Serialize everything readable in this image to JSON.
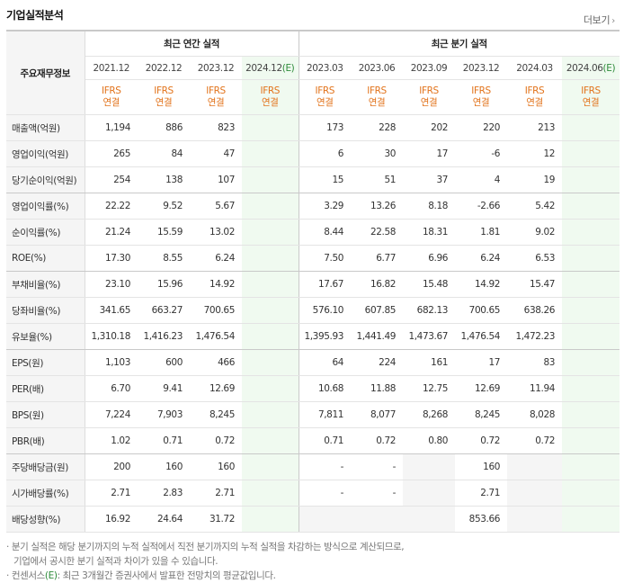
{
  "title": "기업실적분석",
  "more_label": "더보기",
  "header": {
    "row_label": "주요재무정보",
    "annual_group": "최근 연간 실적",
    "quarter_group": "최근 분기 실적",
    "annual_periods": [
      "2021.12",
      "2022.12",
      "2023.12",
      "2024.12"
    ],
    "annual_est_suffix": "(E)",
    "quarter_periods": [
      "2023.03",
      "2023.06",
      "2023.09",
      "2023.12",
      "2024.03",
      "2024.06"
    ],
    "quarter_est_suffix": "(E)",
    "basis_top": "IFRS",
    "basis_bottom": "연결"
  },
  "rows": [
    {
      "label": "매출액(억원)",
      "annual": [
        "1,194",
        "886",
        "823",
        ""
      ],
      "quarter": [
        "173",
        "228",
        "202",
        "220",
        "213",
        ""
      ]
    },
    {
      "label": "영업이익(억원)",
      "annual": [
        "265",
        "84",
        "47",
        ""
      ],
      "quarter": [
        "6",
        "30",
        "17",
        "-6",
        "12",
        ""
      ]
    },
    {
      "label": "당기순이익(억원)",
      "annual": [
        "254",
        "138",
        "107",
        ""
      ],
      "quarter": [
        "15",
        "51",
        "37",
        "4",
        "19",
        ""
      ]
    },
    {
      "label": "영업이익률(%)",
      "annual": [
        "22.22",
        "9.52",
        "5.67",
        ""
      ],
      "quarter": [
        "3.29",
        "13.26",
        "8.18",
        "-2.66",
        "5.42",
        ""
      ]
    },
    {
      "label": "순이익률(%)",
      "annual": [
        "21.24",
        "15.59",
        "13.02",
        ""
      ],
      "quarter": [
        "8.44",
        "22.58",
        "18.31",
        "1.81",
        "9.02",
        ""
      ]
    },
    {
      "label": "ROE(%)",
      "annual": [
        "17.30",
        "8.55",
        "6.24",
        ""
      ],
      "quarter": [
        "7.50",
        "6.77",
        "6.96",
        "6.24",
        "6.53",
        ""
      ]
    },
    {
      "label": "부채비율(%)",
      "annual": [
        "23.10",
        "15.96",
        "14.92",
        ""
      ],
      "quarter": [
        "17.67",
        "16.82",
        "15.48",
        "14.92",
        "15.47",
        ""
      ]
    },
    {
      "label": "당좌비율(%)",
      "annual": [
        "341.65",
        "663.27",
        "700.65",
        ""
      ],
      "quarter": [
        "576.10",
        "607.85",
        "682.13",
        "700.65",
        "638.26",
        ""
      ]
    },
    {
      "label": "유보율(%)",
      "annual": [
        "1,310.18",
        "1,416.23",
        "1,476.54",
        ""
      ],
      "quarter": [
        "1,395.93",
        "1,441.49",
        "1,473.67",
        "1,476.54",
        "1,472.23",
        ""
      ]
    },
    {
      "label": "EPS(원)",
      "annual": [
        "1,103",
        "600",
        "466",
        ""
      ],
      "quarter": [
        "64",
        "224",
        "161",
        "17",
        "83",
        ""
      ]
    },
    {
      "label": "PER(배)",
      "annual": [
        "6.70",
        "9.41",
        "12.69",
        ""
      ],
      "quarter": [
        "10.68",
        "11.88",
        "12.75",
        "12.69",
        "11.94",
        ""
      ]
    },
    {
      "label": "BPS(원)",
      "annual": [
        "7,224",
        "7,903",
        "8,245",
        ""
      ],
      "quarter": [
        "7,811",
        "8,077",
        "8,268",
        "8,245",
        "8,028",
        ""
      ]
    },
    {
      "label": "PBR(배)",
      "annual": [
        "1.02",
        "0.71",
        "0.72",
        ""
      ],
      "quarter": [
        "0.71",
        "0.72",
        "0.80",
        "0.72",
        "0.72",
        ""
      ]
    },
    {
      "label": "주당배당금(원)",
      "annual": [
        "200",
        "160",
        "160",
        ""
      ],
      "quarter": [
        "-",
        "-",
        "",
        "160",
        "",
        ""
      ]
    },
    {
      "label": "시가배당률(%)",
      "annual": [
        "2.71",
        "2.83",
        "2.71",
        ""
      ],
      "quarter": [
        "-",
        "-",
        "",
        "2.71",
        "",
        ""
      ]
    },
    {
      "label": "배당성향(%)",
      "annual": [
        "16.92",
        "24.64",
        "31.72",
        ""
      ],
      "quarter": [
        "",
        "",
        "",
        "853.66",
        "",
        ""
      ]
    }
  ],
  "notes": [
    "· 분기 실적은 해당 분기까지의 누적 실적에서 직전 분기까지의 누적 실적을 차감하는 방식으로 계산되므로,",
    "기업에서 공시한 분기 실적과 차이가 있을 수 있습니다.",
    "· 컨센서스",
    "(E)",
    ": 최근 3개월간 증권사에서 발표한 전망치의 평균값입니다."
  ],
  "colors": {
    "basis": "#e2731b",
    "negative": "#e4322b",
    "estimate_bg": "#f0faf0",
    "estimate_mark": "#2e8b3a"
  }
}
